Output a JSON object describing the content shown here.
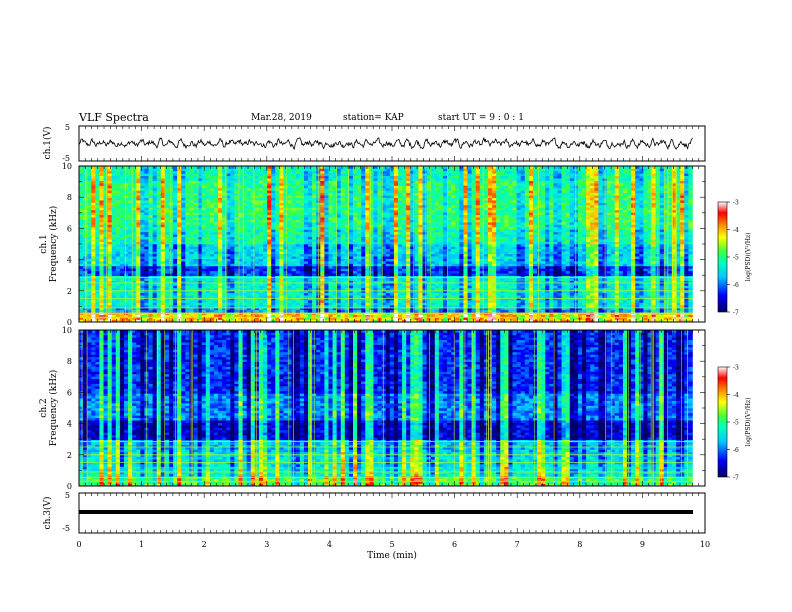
{
  "header": {
    "title": "VLF Spectra",
    "date": "Mar.28, 2019",
    "station": "station= KAP",
    "start": "start  UT =  9 : 0  : 1"
  },
  "chart_data": [
    {
      "type": "line",
      "name": "ch1-waveform",
      "ylabel": "ch.1(V)",
      "ylim": [
        -5,
        5
      ],
      "yticks": [
        "5",
        "-5"
      ],
      "xlim": [
        0,
        10
      ],
      "line_color": "#000000"
    },
    {
      "type": "heatmap",
      "name": "ch1-spectrogram",
      "ylabel": "ch.1\nFrequency (kHz)",
      "ylabel_lines": [
        "ch.1",
        "Frequency (kHz)"
      ],
      "ylim": [
        0,
        10
      ],
      "yticks": [
        "0",
        "2",
        "4",
        "6",
        "8",
        "10"
      ],
      "xlim": [
        0,
        10
      ],
      "data_xlim": [
        0,
        9.8
      ],
      "colorbar": {
        "label": "log(PSD)(V²/Hz)",
        "range": [
          -7,
          -3
        ],
        "ticks": [
          "-3",
          "-4",
          "-5",
          "-6",
          "-7"
        ]
      }
    },
    {
      "type": "heatmap",
      "name": "ch2-spectrogram",
      "ylabel": "ch.2\nFrequency (kHz)",
      "ylabel_lines": [
        "ch.2",
        "Frequency (kHz)"
      ],
      "ylim": [
        0,
        10
      ],
      "yticks": [
        "0",
        "2",
        "4",
        "6",
        "8",
        "10"
      ],
      "xlim": [
        0,
        10
      ],
      "data_xlim": [
        0,
        9.8
      ],
      "colorbar": {
        "label": "log(PSD)(V²/Hz)",
        "range": [
          -7,
          -3
        ],
        "ticks": [
          "-3",
          "-4",
          "-5",
          "-6",
          "-7"
        ]
      }
    },
    {
      "type": "line",
      "name": "ch3-waveform",
      "ylabel": "ch.3(V)",
      "ylim": [
        -5,
        5
      ],
      "yticks": [
        "5",
        "-5"
      ],
      "xlim": [
        0,
        10
      ],
      "xlabel": "Time (min)",
      "xticks": [
        "0",
        "1",
        "2",
        "3",
        "4",
        "5",
        "6",
        "7",
        "8",
        "9",
        "10"
      ],
      "line_color": "#000000"
    }
  ],
  "colors": {
    "colormap": [
      "#000080",
      "#0000ff",
      "#00aaff",
      "#00ffff",
      "#00ff80",
      "#80ff00",
      "#ffff00",
      "#ff8000",
      "#ff0000",
      "#ffffff"
    ]
  }
}
